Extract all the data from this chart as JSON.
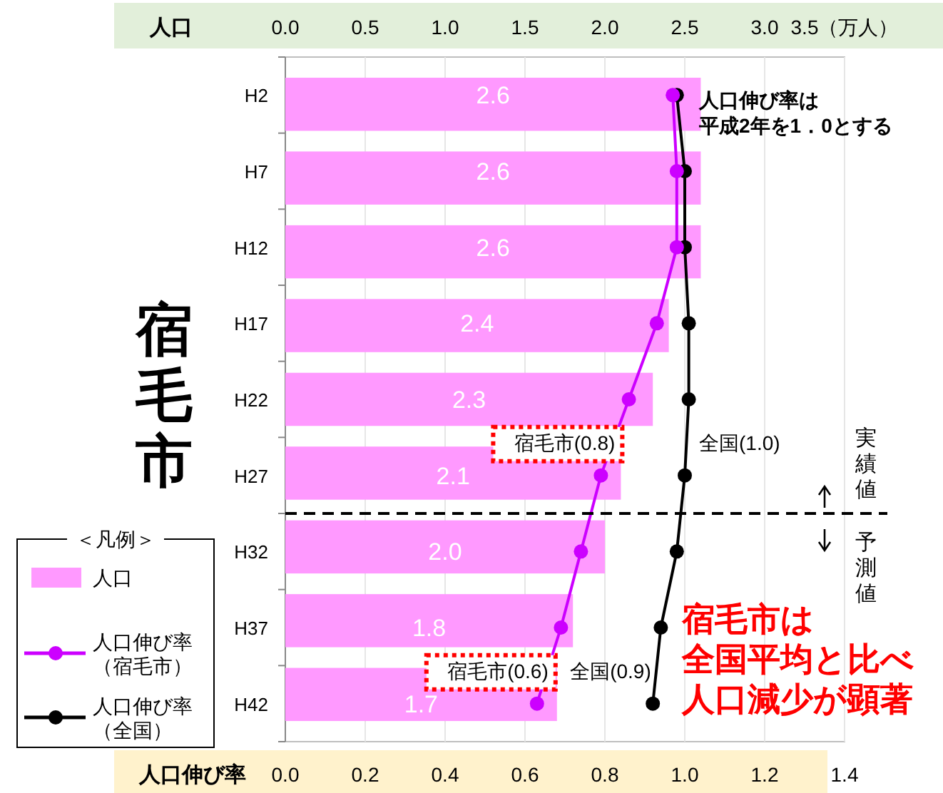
{
  "chart_data": {
    "type": "bar",
    "orientation": "horizontal",
    "title": "宿毛市",
    "xlabel": "人口伸び率",
    "x2label": "人口",
    "legend_title": "＜凡例＞",
    "legend": "left",
    "grid": "x",
    "marker": "circle",
    "categories": [
      "H2",
      "H7",
      "H12",
      "H17",
      "H22",
      "H27",
      "H32",
      "H37",
      "H42"
    ],
    "xlim": [
      0,
      1.4
    ],
    "xticks": [
      {
        "value": 0,
        "label": "0.0"
      },
      0.2,
      0.4,
      0.6,
      0.8,
      {
        "value": 1,
        "label": "1.0"
      },
      1.2,
      1.4
    ],
    "x2lim": [
      0,
      3.5
    ],
    "x2ticks": [
      {
        "value": 0,
        "label": "0.0"
      },
      0.5,
      {
        "value": 1,
        "label": "1.0"
      },
      1.5,
      {
        "value": 2,
        "label": "2.0"
      },
      2.5,
      {
        "value": 3,
        "label": "3.0"
      },
      {
        "value": 3.5,
        "label": "3.5（万人）"
      }
    ],
    "series": [
      {
        "name": "人口",
        "color": "#ff99ff",
        "axis": "x2",
        "values": [
          2.6,
          2.6,
          2.6,
          2.4,
          2.3,
          2.1,
          2.0,
          1.8,
          1.7
        ],
        "value_labels": [
          "2.6",
          "2.6",
          "2.6",
          "2.4",
          "2.3",
          "2.1",
          "2.0",
          "1.8",
          "1.7"
        ]
      },
      {
        "type": "line",
        "name": "人口伸び率（宿毛市）",
        "color": "#cc00ff",
        "values": [
          0.97,
          0.98,
          0.98,
          0.93,
          0.86,
          0.79,
          0.74,
          0.69,
          0.63
        ]
      },
      {
        "type": "line",
        "name": "人口伸び率（全国）",
        "color": "#000000",
        "values": [
          0.98,
          1.0,
          1.0,
          1.01,
          1.01,
          1.0,
          0.98,
          0.94,
          0.92
        ]
      }
    ],
    "ref_lines": [
      {
        "axis": "y",
        "value": "H27",
        "line_style": "dashed",
        "color": "#000000"
      }
    ],
    "annotations": [
      "人口伸び率は平成2年を1．0とする",
      {
        "text": "宿毛市(0.8)",
        "x": 0.79,
        "y": "H27"
      },
      {
        "text": "全国(1.0)",
        "x": 1.0,
        "y": "H27"
      },
      {
        "text": "宿毛市(0.6)",
        "x": 0.63,
        "y": "H42"
      },
      {
        "text": "全国(0.9)",
        "x": 0.92,
        "y": "H42"
      },
      "実績値",
      "予測値",
      "宿毛市は全国平均と比べ人口減少が顕著"
    ]
  }
}
